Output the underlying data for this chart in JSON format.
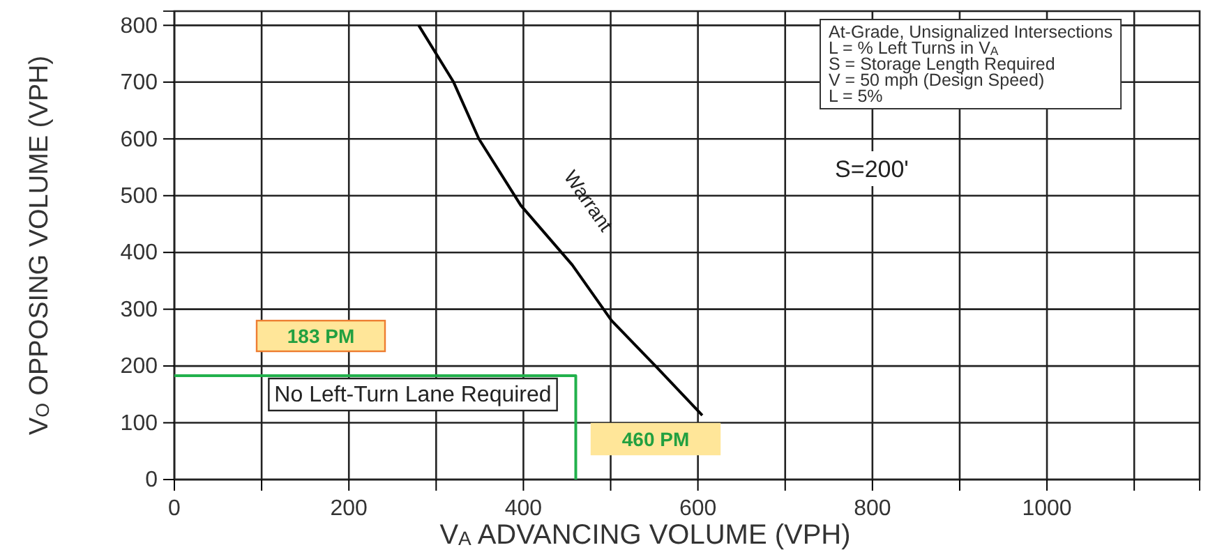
{
  "chart_data": {
    "type": "line",
    "xlabel": "V$_{A}$ ADVANCING VOLUME (VPH)",
    "ylabel": "V$_{O}$ OPPOSING VOLUME (VPH)",
    "xlim": [
      0,
      1175
    ],
    "ylim": [
      0,
      825
    ],
    "xticks": [
      0,
      {
        "value": 100,
        "label": null
      },
      200,
      {
        "value": 300,
        "label": null
      },
      400,
      {
        "value": 500,
        "label": null
      },
      600,
      {
        "value": 700,
        "label": null
      },
      800,
      {
        "value": 900,
        "label": null
      },
      1000,
      {
        "value": 1100,
        "label": null
      }
    ],
    "yticks": [
      0,
      100,
      200,
      300,
      400,
      500,
      600,
      700,
      800
    ],
    "grid": true,
    "marker": "none",
    "line_style": "solid",
    "series": [
      {
        "color": "#000000",
        "x": [
          280,
          320,
          349,
          397,
          456,
          501,
          552,
          605
        ],
        "values": [
          800,
          700,
          600,
          483,
          378,
          280,
          199,
          113
        ]
      },
      {
        "color": "#22b14c",
        "x": [
          0,
          460,
          460
        ],
        "values": [
          183,
          183,
          0
        ]
      }
    ],
    "annotations": [
      "At-Grade, Unsignalized Intersections",
      "L = % Left Turns in V$_{A}$",
      "S = Storage Length Required",
      "V = 50 mph (Design Speed)",
      "L = 5%",
      "S=200'",
      "Warrant",
      "No Left-Turn Lane Required",
      "183 PM",
      "460 PM"
    ]
  }
}
